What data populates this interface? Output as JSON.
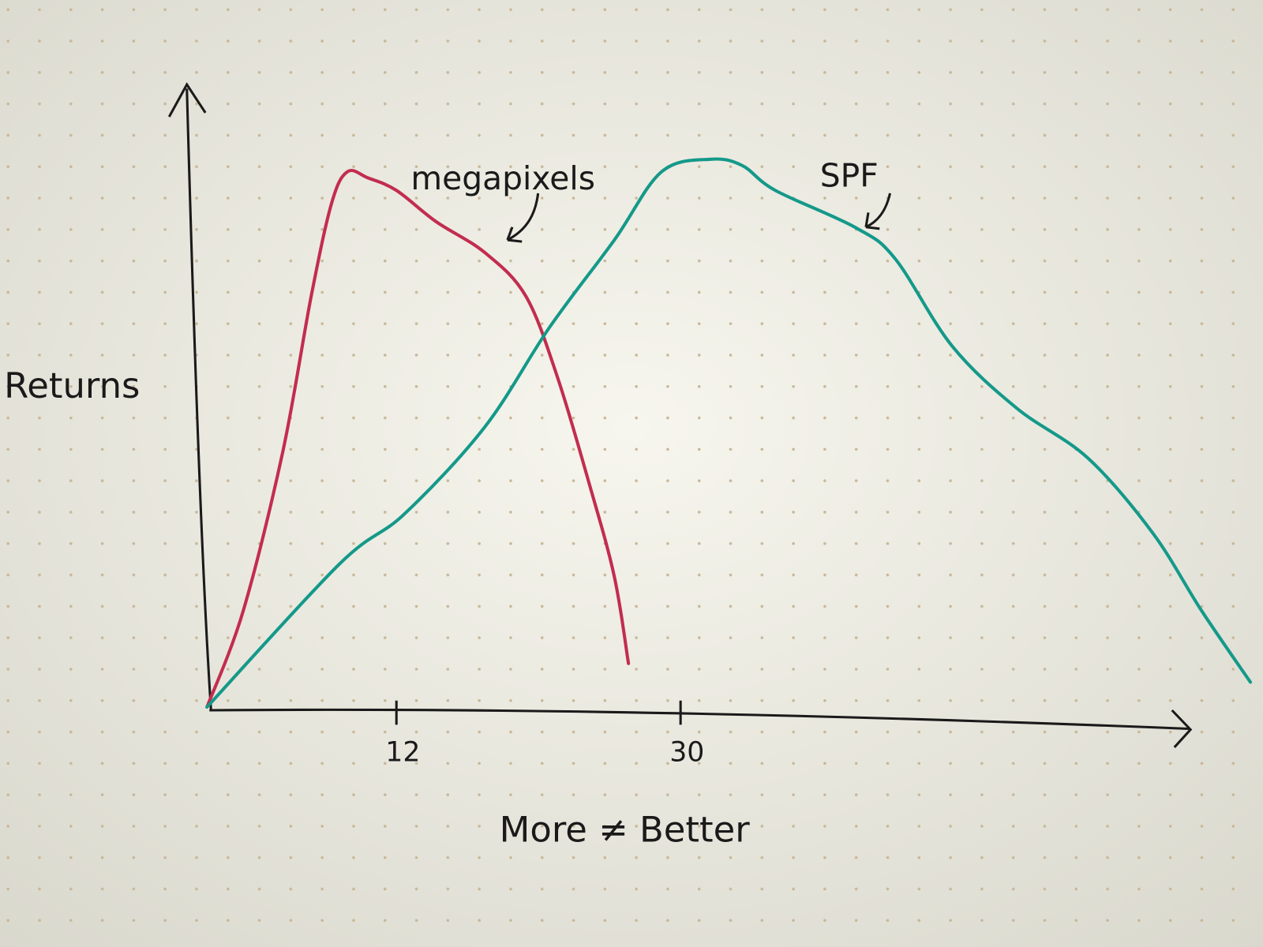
{
  "chart_data": {
    "type": "line",
    "x_label": "More ≠ Better",
    "y_label": "Returns",
    "xlim": [
      0,
      62
    ],
    "ylim": [
      0,
      100
    ],
    "xticks": [
      12,
      30
    ],
    "series": [
      {
        "name": "megapixels",
        "color": "#c22d4f",
        "x": [
          0,
          2.3,
          4.8,
          6.6,
          7.9,
          8.9,
          10.2,
          12,
          14.5,
          17.6,
          20.2,
          22.2,
          24.2,
          25.8,
          26.7
        ],
        "values": [
          0,
          15.5,
          41,
          66,
          81,
          86,
          85,
          83,
          78,
          73,
          66,
          53,
          36,
          21,
          7
        ]
      },
      {
        "name": "SPF",
        "color": "#14998a",
        "x": [
          0,
          8.4,
          12.5,
          17.6,
          21.7,
          25.8,
          28.8,
          31.9,
          33.9,
          36,
          41.1,
          43.6,
          47.2,
          51.3,
          55.8,
          59.9,
          63,
          66.1
        ],
        "values": [
          0,
          23,
          31,
          45,
          61,
          75,
          86,
          88,
          87,
          83,
          77,
          72,
          58,
          48,
          40,
          28,
          15.5,
          4
        ]
      }
    ]
  }
}
